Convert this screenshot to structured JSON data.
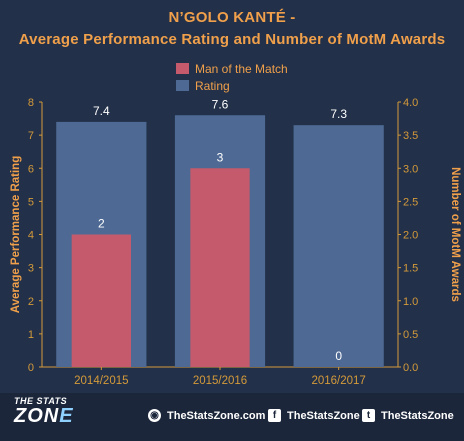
{
  "title_line1": "N’GOLO KANTÉ  -",
  "title_line2": "Average Performance Rating and Number of MotM Awards",
  "legend": [
    {
      "label": "Man of the Match",
      "color": "#c45a6b"
    },
    {
      "label": "Rating",
      "color": "#4e6a94"
    }
  ],
  "chart_data": {
    "type": "bar",
    "categories": [
      "2014/2015",
      "2015/2016",
      "2016/2017"
    ],
    "series": [
      {
        "name": "Rating",
        "axis": "left",
        "values": [
          7.4,
          7.6,
          7.3
        ],
        "color": "#4e6a94"
      },
      {
        "name": "Man of the Match",
        "axis": "right",
        "values": [
          2,
          3,
          0
        ],
        "color": "#c45a6b"
      }
    ],
    "ylabel": "Average Performance Rating",
    "y2label": "Number of MotM Awards",
    "ylim": [
      0,
      8
    ],
    "y2lim": [
      0,
      4
    ],
    "yticks": [
      "0",
      "1",
      "2",
      "3",
      "4",
      "5",
      "6",
      "7",
      "8"
    ],
    "y2ticks": [
      "0.0",
      "0.5",
      "1.0",
      "1.5",
      "2.0",
      "2.5",
      "3.0",
      "3.5",
      "4.0"
    ]
  },
  "footer": {
    "brand_top": "THE STATS",
    "brand_word_a": "ZON",
    "brand_word_b": "E",
    "website": "TheStatsZone.com",
    "facebook": "TheStatsZone",
    "twitter": "TheStatsZone"
  },
  "colors": {
    "background": "#223049",
    "accent": "#f0a04b",
    "axis": "#d49a3a",
    "footer": "#1b263b"
  }
}
